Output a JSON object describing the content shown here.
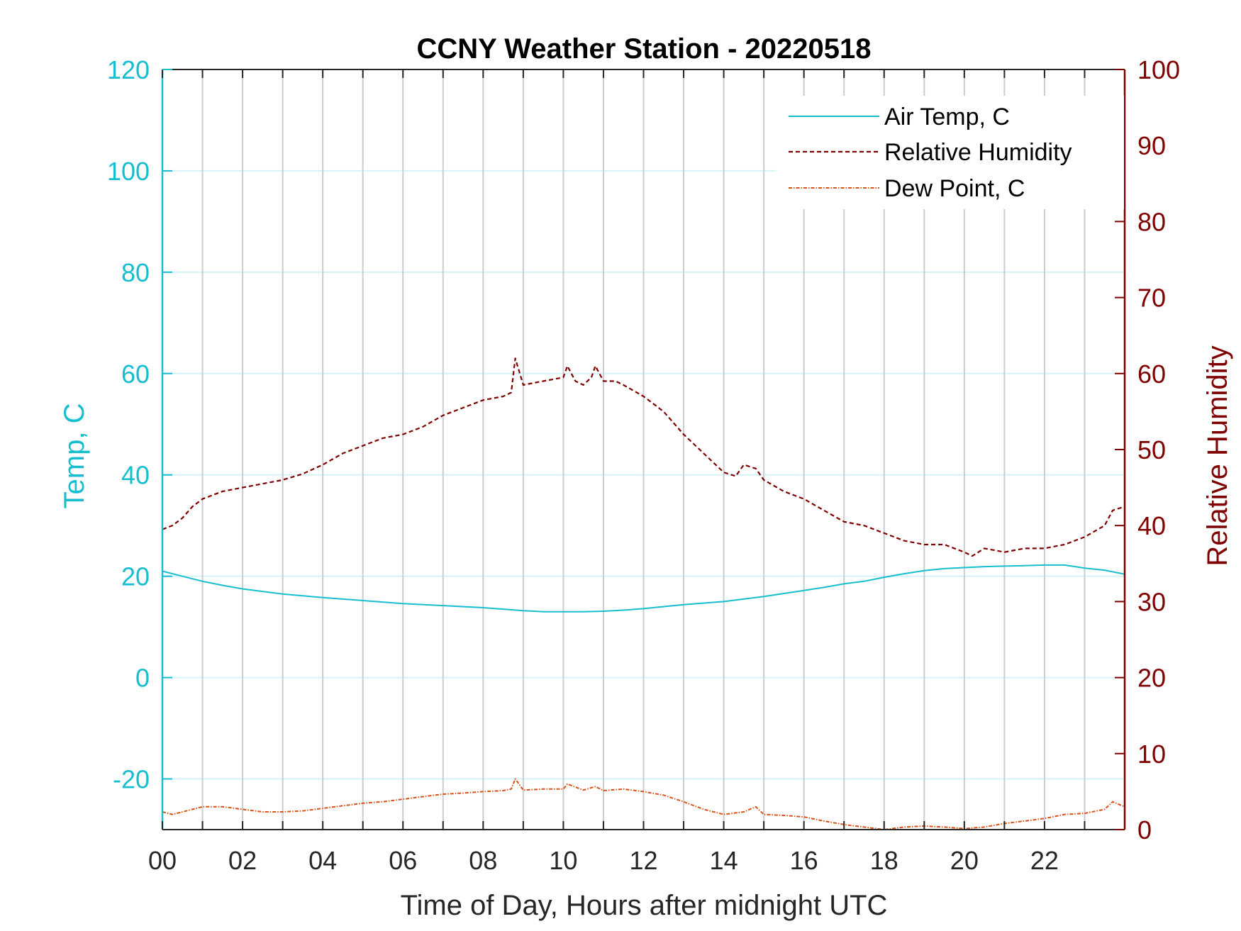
{
  "colors": {
    "temp": "#17becf",
    "rh": "#800000",
    "dew": "#d95319",
    "vgrid": "#c8cdd2",
    "hgrid": "#d6f2f7",
    "axis": "#262626",
    "background": "#ffffff"
  },
  "chart_data": {
    "type": "line",
    "title": "CCNY Weather Station - 20220518",
    "xlabel": "Time of Day, Hours after midnight UTC",
    "ylabel_left": "Temp, C",
    "ylabel_right": "Relative Humidity",
    "xlim": [
      0,
      24
    ],
    "ylim_left": [
      -30,
      120
    ],
    "ylim_right": [
      0,
      100
    ],
    "x_ticks": [
      0,
      2,
      4,
      6,
      8,
      10,
      12,
      14,
      16,
      18,
      20,
      22
    ],
    "x_tick_labels": [
      "00",
      "02",
      "04",
      "06",
      "08",
      "10",
      "12",
      "14",
      "16",
      "18",
      "20",
      "22"
    ],
    "minor_x_ticks": [
      1,
      3,
      5,
      7,
      9,
      11,
      13,
      15,
      17,
      19,
      21,
      23
    ],
    "y_left_ticks": [
      -20,
      0,
      20,
      40,
      60,
      80,
      100,
      120
    ],
    "y_left_tick_labels": [
      "-20",
      "0",
      "20",
      "40",
      "60",
      "80",
      "100",
      "120"
    ],
    "y_right_ticks": [
      0,
      10,
      20,
      30,
      40,
      50,
      60,
      70,
      80,
      90,
      100
    ],
    "y_right_tick_labels": [
      "0",
      "10",
      "20",
      "30",
      "40",
      "50",
      "60",
      "70",
      "80",
      "90",
      "100"
    ],
    "grid": true,
    "legend_position": "top-right",
    "series": [
      {
        "name": "Air Temp, C",
        "axis": "left",
        "style": "solid",
        "x": [
          0,
          0.5,
          1,
          1.5,
          2,
          3,
          4,
          5,
          6,
          7,
          8,
          8.5,
          9,
          9.5,
          10,
          10.5,
          11,
          11.5,
          12,
          12.5,
          13,
          14,
          15,
          16,
          16.5,
          17,
          17.5,
          18,
          18.5,
          19,
          19.5,
          20,
          20.5,
          21,
          21.5,
          22,
          22.5,
          23,
          23.5,
          24
        ],
        "values": [
          21,
          20,
          19,
          18.2,
          17.5,
          16.5,
          15.8,
          15.2,
          14.6,
          14.2,
          13.8,
          13.5,
          13.2,
          13,
          13,
          13,
          13.1,
          13.3,
          13.6,
          14,
          14.4,
          15,
          16,
          17.2,
          17.8,
          18.5,
          19,
          19.8,
          20.5,
          21.1,
          21.5,
          21.7,
          21.9,
          22,
          22.1,
          22.2,
          22.2,
          21.6,
          21.2,
          20.4
        ]
      },
      {
        "name": "Relative Humidity",
        "axis": "right",
        "style": "dashed",
        "x": [
          0,
          0.25,
          0.5,
          0.75,
          1,
          1.5,
          2,
          2.5,
          3,
          3.5,
          4,
          4.5,
          5,
          5.5,
          6,
          6.5,
          7,
          7.5,
          8,
          8.5,
          8.7,
          8.8,
          9,
          9.5,
          10,
          10.1,
          10.3,
          10.5,
          10.7,
          10.8,
          11,
          11.3,
          11.5,
          12,
          12.5,
          13,
          13.5,
          14,
          14.3,
          14.5,
          14.8,
          15,
          15.5,
          16,
          16.5,
          17,
          17.5,
          18,
          18.5,
          19,
          19.5,
          20,
          20.2,
          20.5,
          21,
          21.5,
          22,
          22.5,
          23,
          23.5,
          23.7,
          24
        ],
        "values": [
          39.5,
          40,
          41,
          42.5,
          43.5,
          44.5,
          45,
          45.5,
          46,
          46.8,
          48,
          49.5,
          50.5,
          51.5,
          52,
          53,
          54.5,
          55.5,
          56.5,
          57,
          57.5,
          62,
          58.5,
          59,
          59.5,
          61,
          59,
          58.5,
          59.5,
          61,
          59,
          59,
          58.5,
          57,
          55,
          52,
          49.5,
          47,
          46.5,
          48,
          47.5,
          46,
          44.5,
          43.5,
          42,
          40.5,
          40,
          39,
          38,
          37.5,
          37.5,
          36.5,
          36,
          37,
          36.5,
          37,
          37,
          37.5,
          38.5,
          40,
          42,
          42.5
        ]
      },
      {
        "name": "Dew Point, C",
        "axis": "left",
        "style": "dashdot",
        "x": [
          0,
          0.25,
          0.5,
          1,
          1.5,
          2,
          2.5,
          3,
          3.5,
          4,
          4.5,
          5,
          5.5,
          6,
          6.5,
          7,
          7.5,
          8,
          8.5,
          8.7,
          8.8,
          9,
          9.5,
          10,
          10.1,
          10.5,
          10.8,
          11,
          11.5,
          12,
          12.5,
          13,
          13.5,
          14,
          14.5,
          14.8,
          15,
          15.5,
          16,
          16.5,
          17,
          17.5,
          18,
          18.5,
          19,
          19.5,
          20,
          20.5,
          21,
          21.5,
          22,
          22.5,
          23,
          23.5,
          23.7,
          24
        ],
        "values": [
          -26.5,
          -27,
          -26.5,
          -25.5,
          -25.5,
          -26,
          -26.5,
          -26.5,
          -26.3,
          -25.8,
          -25.3,
          -24.8,
          -24.5,
          -24,
          -23.5,
          -23,
          -22.8,
          -22.5,
          -22.3,
          -22,
          -20,
          -22.2,
          -22,
          -22,
          -21,
          -22.2,
          -21.5,
          -22.3,
          -22,
          -22.5,
          -23.2,
          -24.5,
          -26,
          -27,
          -26.5,
          -25.5,
          -27,
          -27.2,
          -27.5,
          -28.3,
          -29,
          -29.5,
          -30,
          -29.5,
          -29.3,
          -29.5,
          -29.8,
          -29.5,
          -28.8,
          -28.3,
          -27.8,
          -27,
          -26.8,
          -26,
          -24.5,
          -25.5
        ]
      }
    ]
  }
}
